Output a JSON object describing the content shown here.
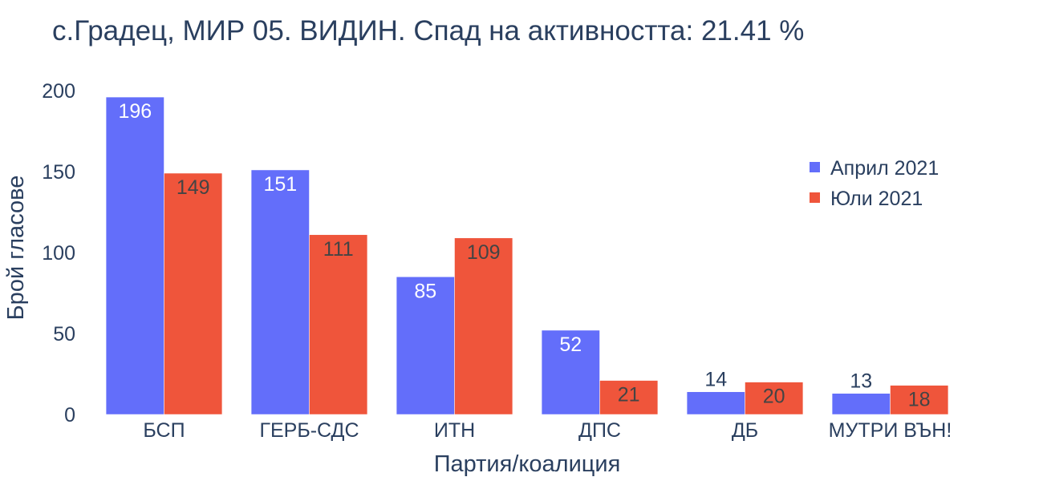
{
  "chart_data": {
    "type": "bar",
    "title": "с.Градец, МИР 05. ВИДИН. Спад на активността: 21.41 %",
    "xlabel": "Партия/коалиция",
    "ylabel": "Брой гласове",
    "categories": [
      "БСП",
      "ГЕРБ-СДС",
      "ИТН",
      "ДПС",
      "ДБ",
      "МУТРИ ВЪН!"
    ],
    "series": [
      {
        "name": "Април 2021",
        "color": "#636efa",
        "values": [
          196,
          151,
          85,
          52,
          14,
          13
        ]
      },
      {
        "name": "Юли 2021",
        "color": "#ef553b",
        "values": [
          149,
          111,
          109,
          21,
          20,
          18
        ]
      }
    ],
    "ylim": [
      0,
      200
    ],
    "yticks": [
      0,
      50,
      100,
      150,
      200
    ],
    "grid": false,
    "legend_position": "top-right"
  }
}
